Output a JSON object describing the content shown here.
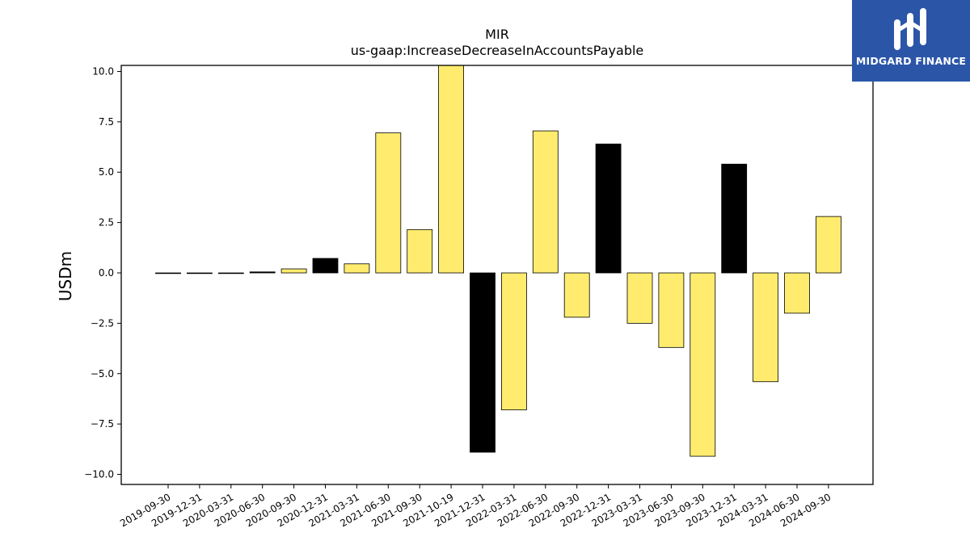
{
  "brand": {
    "name": "MIDGARD FINANCE",
    "bg_color": "#2b56a8",
    "icon": "midgard-logo-icon"
  },
  "chart_data": {
    "type": "bar",
    "title": "MIR",
    "subtitle": "us-gaap:IncreaseDecreaseInAccountsPayable",
    "xlabel": "",
    "ylabel": "USDm",
    "ylim": [
      -10.5,
      10.3
    ],
    "yticks": [
      -10.0,
      -7.5,
      -5.0,
      -2.5,
      0.0,
      2.5,
      5.0,
      7.5,
      10.0
    ],
    "grid": false,
    "colors": {
      "quarter": "#ffec6e",
      "year_end": "#000000",
      "edge": "#000000"
    },
    "categories": [
      "2019-09-30",
      "2019-12-31",
      "2020-03-31",
      "2020-06-30",
      "2020-09-30",
      "2020-12-31",
      "2021-03-31",
      "2021-06-30",
      "2021-09-30",
      "2021-10-19",
      "2021-12-31",
      "2022-03-31",
      "2022-06-30",
      "2022-09-30",
      "2022-12-31",
      "2023-03-31",
      "2023-06-30",
      "2023-09-30",
      "2023-12-31",
      "2024-03-31",
      "2024-06-30",
      "2024-09-30"
    ],
    "values": [
      0.0,
      0.0,
      0.0,
      0.05,
      0.2,
      0.72,
      0.45,
      6.95,
      2.15,
      10.3,
      -8.9,
      -6.8,
      7.05,
      -2.2,
      6.4,
      -2.5,
      -3.7,
      -9.1,
      5.4,
      -5.4,
      -2.0,
      2.8
    ],
    "bar_kind": [
      "quarter",
      "year_end",
      "quarter",
      "year_end",
      "quarter",
      "year_end",
      "quarter",
      "quarter",
      "quarter",
      "quarter",
      "year_end",
      "quarter",
      "quarter",
      "quarter",
      "year_end",
      "quarter",
      "quarter",
      "quarter",
      "year_end",
      "quarter",
      "quarter",
      "quarter"
    ]
  }
}
